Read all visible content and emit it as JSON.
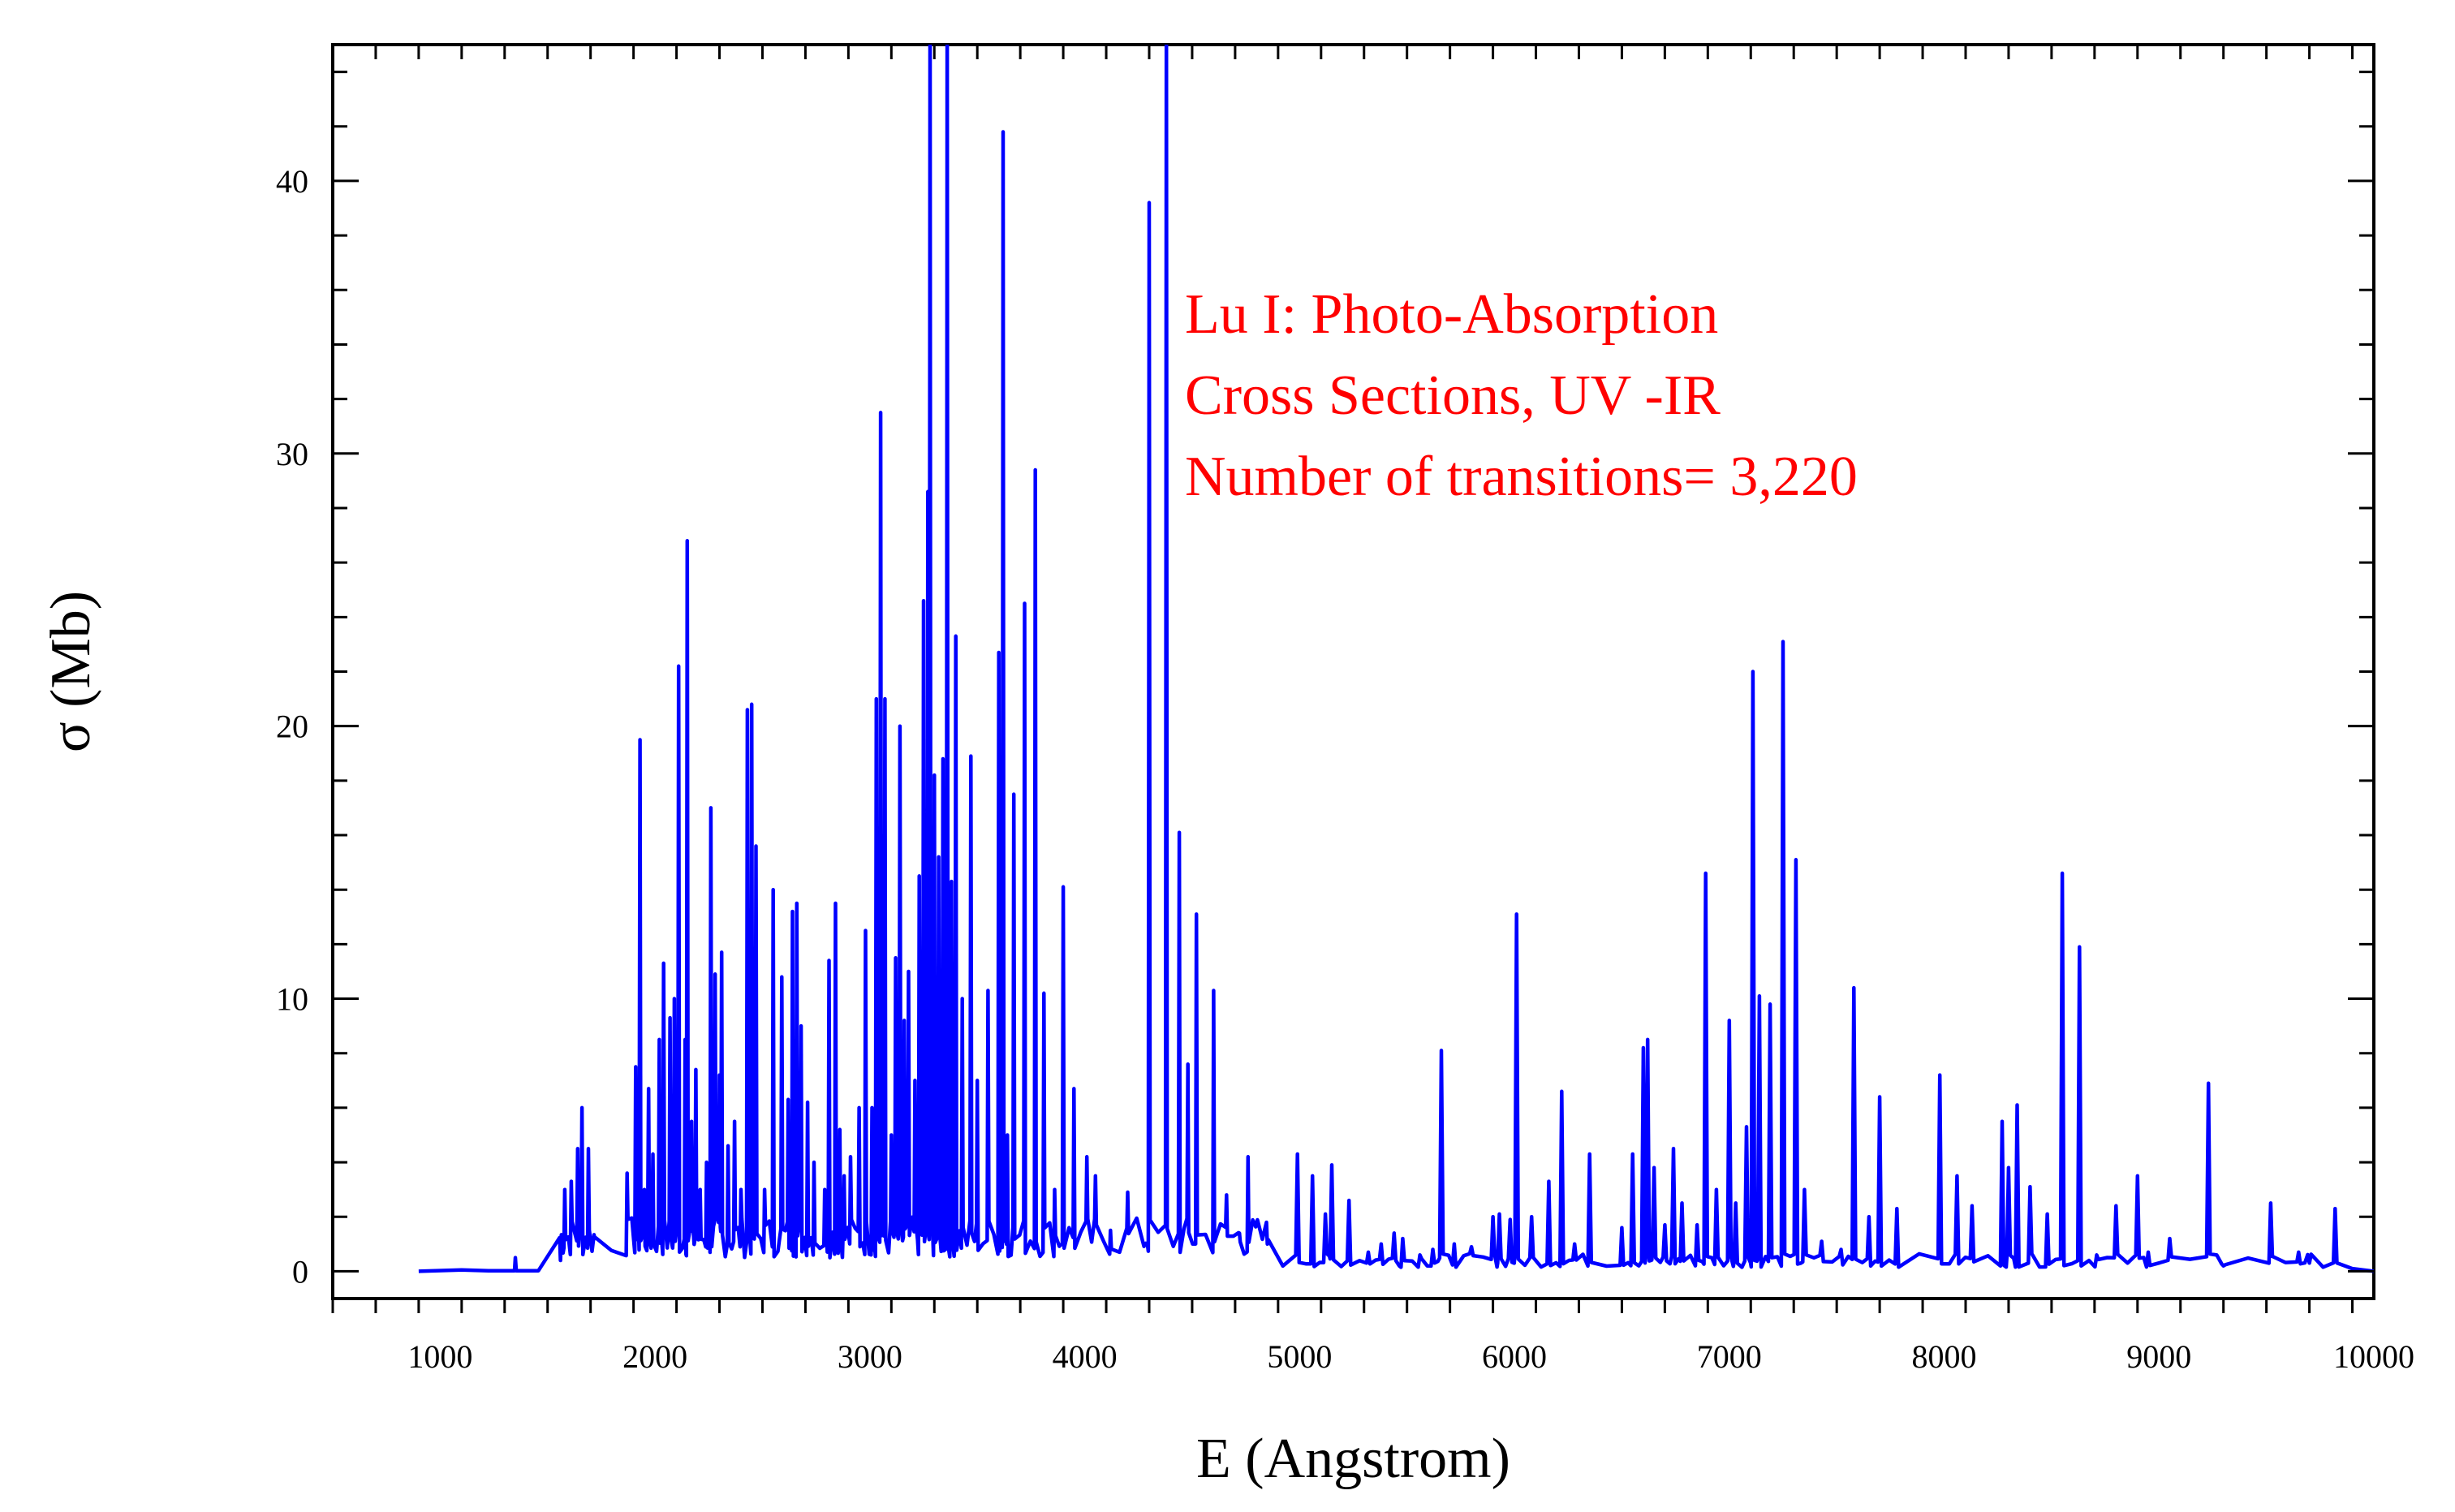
{
  "chart_data": {
    "type": "line",
    "xlabel": "E (Angstrom)",
    "ylabel": "σ (Mb)",
    "xlim": [
      500,
      10000
    ],
    "ylim": [
      -1,
      45
    ],
    "x_ticks": [
      1000,
      2000,
      3000,
      4000,
      5000,
      6000,
      7000,
      8000,
      9000,
      10000
    ],
    "x_tick_labels": [
      "1000",
      "2000",
      "3000",
      "4000",
      "5000",
      "6000",
      "7000",
      "8000",
      "9000",
      "10000"
    ],
    "x_minor_step": 200,
    "y_ticks": [
      0,
      10,
      20,
      30,
      40
    ],
    "y_tick_labels": [
      "0",
      "10",
      "20",
      "30",
      "40"
    ],
    "y_minor_step": 2,
    "grid": false,
    "line_color": "#0000ff",
    "annotation": {
      "lines": [
        "Lu I: Photo-Absorption",
        "Cross Sections, UV -IR",
        "Number of transitions= 3,220"
      ],
      "color": "#ff0000"
    },
    "series": [
      {
        "peaks": [
          [
            1350,
            0.5
          ],
          [
            1560,
            0.4
          ],
          [
            1580,
            3
          ],
          [
            1610,
            3.3
          ],
          [
            1640,
            4.5
          ],
          [
            1660,
            6
          ],
          [
            1690,
            4.5
          ],
          [
            1720,
            1.2
          ],
          [
            1870,
            3.6
          ],
          [
            1910,
            7.5
          ],
          [
            1930,
            19.5
          ],
          [
            1950,
            3
          ],
          [
            1970,
            6.7
          ],
          [
            1990,
            4.3
          ],
          [
            2020,
            8.5
          ],
          [
            2040,
            11.3
          ],
          [
            2070,
            9.3
          ],
          [
            2090,
            10
          ],
          [
            2110,
            22.2
          ],
          [
            2140,
            8.5
          ],
          [
            2150,
            26.8
          ],
          [
            2170,
            5.5
          ],
          [
            2190,
            7.4
          ],
          [
            2210,
            3
          ],
          [
            2240,
            4
          ],
          [
            2260,
            17
          ],
          [
            2280,
            10.9
          ],
          [
            2300,
            7.2
          ],
          [
            2310,
            11.7
          ],
          [
            2340,
            4.6
          ],
          [
            2370,
            5.5
          ],
          [
            2400,
            3
          ],
          [
            2430,
            20.6
          ],
          [
            2450,
            20.8
          ],
          [
            2470,
            15.6
          ],
          [
            2510,
            3
          ],
          [
            2550,
            14
          ],
          [
            2590,
            10.8
          ],
          [
            2620,
            6.3
          ],
          [
            2640,
            13.2
          ],
          [
            2660,
            13.5
          ],
          [
            2680,
            9
          ],
          [
            2710,
            6.2
          ],
          [
            2740,
            4
          ],
          [
            2790,
            3
          ],
          [
            2810,
            11.4
          ],
          [
            2840,
            13.5
          ],
          [
            2860,
            5.2
          ],
          [
            2880,
            3.5
          ],
          [
            2910,
            4.2
          ],
          [
            2950,
            6
          ],
          [
            2980,
            12.5
          ],
          [
            3010,
            6
          ],
          [
            3030,
            21
          ],
          [
            3050,
            31.5
          ],
          [
            3070,
            21
          ],
          [
            3100,
            5
          ],
          [
            3120,
            11.5
          ],
          [
            3140,
            20
          ],
          [
            3160,
            9.2
          ],
          [
            3180,
            11
          ],
          [
            3210,
            7
          ],
          [
            3230,
            14.5
          ],
          [
            3250,
            24.6
          ],
          [
            3270,
            28.6
          ],
          [
            3280,
            46
          ],
          [
            3300,
            18.2
          ],
          [
            3320,
            15.2
          ],
          [
            3340,
            18.8
          ],
          [
            3360,
            46
          ],
          [
            3380,
            14.3
          ],
          [
            3400,
            23.3
          ],
          [
            3430,
            10
          ],
          [
            3470,
            18.9
          ],
          [
            3500,
            7
          ],
          [
            3550,
            10.3
          ],
          [
            3600,
            22.7
          ],
          [
            3620,
            41.8
          ],
          [
            3640,
            5
          ],
          [
            3670,
            17.5
          ],
          [
            3720,
            24.5
          ],
          [
            3770,
            29.4
          ],
          [
            3810,
            10.2
          ],
          [
            3860,
            3
          ],
          [
            3900,
            14.1
          ],
          [
            3950,
            6.7
          ],
          [
            4010,
            4.2
          ],
          [
            4050,
            3.5
          ],
          [
            4120,
            1.5
          ],
          [
            4200,
            2.9
          ],
          [
            4280,
            1
          ],
          [
            4300,
            39.2
          ],
          [
            4380,
            46
          ],
          [
            4440,
            16.1
          ],
          [
            4480,
            7.6
          ],
          [
            4520,
            13.1
          ],
          [
            4600,
            10.3
          ],
          [
            4660,
            2.8
          ],
          [
            4720,
            1.4
          ],
          [
            4760,
            4.2
          ],
          [
            4800,
            1.8
          ],
          [
            4850,
            1
          ],
          [
            4990,
            4.3
          ],
          [
            5060,
            3.5
          ],
          [
            5120,
            2.1
          ],
          [
            5150,
            3.9
          ],
          [
            5230,
            2.6
          ],
          [
            5320,
            0.7
          ],
          [
            5380,
            1
          ],
          [
            5440,
            1.4
          ],
          [
            5480,
            1.2
          ],
          [
            5560,
            0.6
          ],
          [
            5620,
            0.8
          ],
          [
            5660,
            8.1
          ],
          [
            5720,
            1
          ],
          [
            5800,
            0.9
          ],
          [
            5900,
            2
          ],
          [
            5930,
            2.1
          ],
          [
            5980,
            1.9
          ],
          [
            6010,
            13.1
          ],
          [
            6080,
            2
          ],
          [
            6160,
            3.3
          ],
          [
            6220,
            6.6
          ],
          [
            6280,
            1
          ],
          [
            6350,
            4.3
          ],
          [
            6500,
            1.6
          ],
          [
            6550,
            4.3
          ],
          [
            6600,
            8.2
          ],
          [
            6620,
            8.5
          ],
          [
            6650,
            3.8
          ],
          [
            6700,
            1.7
          ],
          [
            6740,
            4.5
          ],
          [
            6780,
            2.5
          ],
          [
            6850,
            1.7
          ],
          [
            6890,
            14.6
          ],
          [
            6940,
            3
          ],
          [
            7000,
            9.2
          ],
          [
            7030,
            2.5
          ],
          [
            7080,
            5.3
          ],
          [
            7110,
            22
          ],
          [
            7140,
            10.1
          ],
          [
            7190,
            9.8
          ],
          [
            7250,
            23.1
          ],
          [
            7310,
            15.1
          ],
          [
            7350,
            3
          ],
          [
            7430,
            1.1
          ],
          [
            7520,
            0.8
          ],
          [
            7580,
            10.4
          ],
          [
            7650,
            2
          ],
          [
            7700,
            6.4
          ],
          [
            7780,
            2.3
          ],
          [
            7980,
            7.2
          ],
          [
            8060,
            3.5
          ],
          [
            8130,
            2.4
          ],
          [
            8270,
            5.5
          ],
          [
            8300,
            3.8
          ],
          [
            8340,
            6.1
          ],
          [
            8400,
            3.1
          ],
          [
            8480,
            2.1
          ],
          [
            8550,
            14.6
          ],
          [
            8630,
            11.9
          ],
          [
            8710,
            0.6
          ],
          [
            8800,
            2.4
          ],
          [
            8900,
            3.5
          ],
          [
            8950,
            0.7
          ],
          [
            9050,
            1.2
          ],
          [
            9230,
            6.9
          ],
          [
            9300,
            0.2
          ],
          [
            9520,
            2.5
          ],
          [
            9650,
            0.7
          ],
          [
            9700,
            0.3
          ],
          [
            9820,
            2.3
          ]
        ]
      }
    ]
  }
}
